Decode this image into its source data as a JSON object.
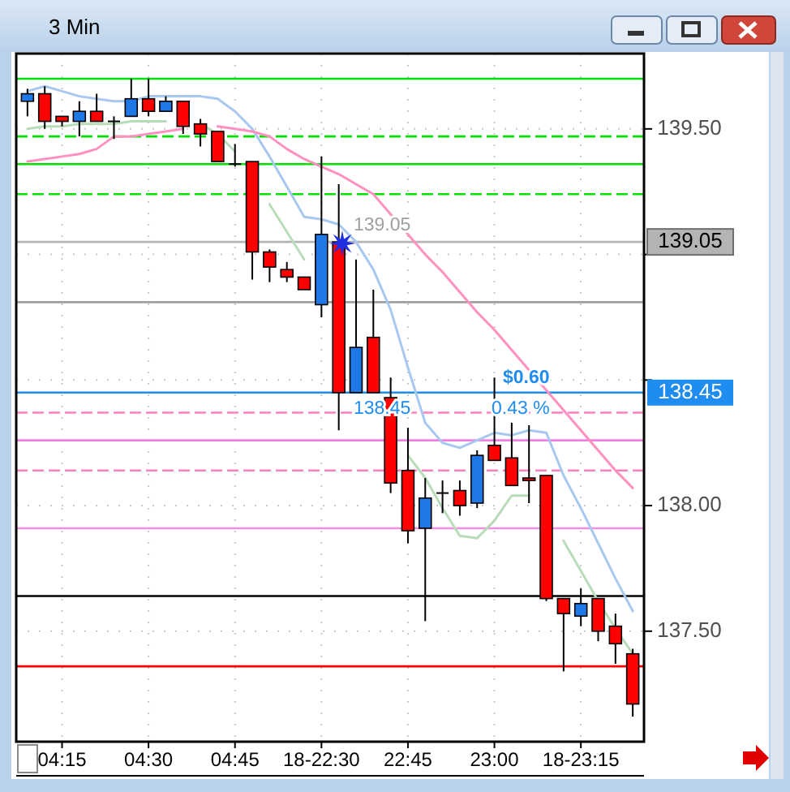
{
  "chart_data": {
    "type": "candlestick",
    "title": "3 Min",
    "categories": [
      null,
      null,
      "04:15",
      null,
      null,
      null,
      null,
      "04:30",
      null,
      null,
      null,
      null,
      "04:45",
      null,
      null,
      null,
      null,
      "18-22:30",
      null,
      null,
      null,
      null,
      "22:45",
      null,
      null,
      null,
      null,
      "23:00",
      null,
      null,
      null,
      null,
      "18-23:15",
      null,
      null,
      null
    ],
    "ohlc": [
      [
        139.61,
        139.66,
        139.55,
        139.64
      ],
      [
        139.64,
        139.67,
        139.5,
        139.53
      ],
      [
        139.55,
        139.55,
        139.51,
        139.53
      ],
      [
        139.53,
        139.61,
        139.47,
        139.57
      ],
      [
        139.57,
        139.64,
        139.53,
        139.53
      ],
      [
        139.53,
        139.55,
        139.46,
        139.53
      ],
      [
        139.55,
        139.7,
        139.55,
        139.62
      ],
      [
        139.62,
        139.7,
        139.55,
        139.57
      ],
      [
        139.57,
        139.63,
        139.57,
        139.61
      ],
      [
        139.61,
        139.61,
        139.48,
        139.51
      ],
      [
        139.52,
        139.54,
        139.43,
        139.48
      ],
      [
        139.49,
        139.49,
        139.37,
        139.37
      ],
      [
        139.36,
        139.44,
        139.35,
        139.36
      ],
      [
        139.37,
        139.37,
        138.9,
        139.01
      ],
      [
        139.01,
        139.02,
        138.89,
        138.95
      ],
      [
        138.94,
        138.97,
        138.89,
        138.91
      ],
      [
        138.91,
        138.91,
        138.86,
        138.86
      ],
      [
        138.8,
        139.39,
        138.75,
        139.08
      ],
      [
        139.05,
        139.28,
        138.3,
        138.45
      ],
      [
        138.45,
        138.98,
        138.45,
        138.63
      ],
      [
        138.67,
        138.86,
        138.45,
        138.45
      ],
      [
        138.43,
        138.51,
        138.05,
        138.09
      ],
      [
        138.14,
        138.31,
        137.85,
        137.9
      ],
      [
        137.91,
        138.11,
        137.54,
        138.03
      ],
      [
        138.05,
        138.1,
        137.97,
        138.05
      ],
      [
        138.06,
        138.1,
        137.96,
        138.0
      ],
      [
        138.01,
        138.22,
        137.99,
        138.2
      ],
      [
        138.24,
        138.51,
        138.18,
        138.18
      ],
      [
        138.19,
        138.33,
        138.08,
        138.08
      ],
      [
        138.11,
        138.32,
        138.01,
        138.1
      ],
      [
        138.12,
        138.12,
        137.62,
        137.63
      ],
      [
        137.63,
        137.63,
        137.34,
        137.57
      ],
      [
        137.56,
        137.67,
        137.52,
        137.61
      ],
      [
        137.63,
        137.63,
        137.46,
        137.5
      ],
      [
        137.52,
        137.57,
        137.37,
        137.45
      ],
      [
        137.41,
        137.43,
        137.16,
        137.21
      ]
    ],
    "series": [
      {
        "type": "line",
        "color": "#a8c8f0",
        "values": [
          139.65,
          139.67,
          139.65,
          139.63,
          139.62,
          139.61,
          139.61,
          139.63,
          139.63,
          139.63,
          139.63,
          139.62,
          139.57,
          139.5,
          139.39,
          139.27,
          139.15,
          139.14,
          139.12,
          139.05,
          138.94,
          138.78,
          138.55,
          138.33,
          138.25,
          138.23,
          138.26,
          138.29,
          138.28,
          138.3,
          138.29,
          138.12,
          137.99,
          137.85,
          137.71,
          137.58
        ]
      },
      {
        "type": "line",
        "color": "#ff90c0",
        "values": [
          139.37,
          139.38,
          139.39,
          139.4,
          139.42,
          139.47,
          139.47,
          139.48,
          139.49,
          139.5,
          null,
          139.51,
          139.5,
          139.49,
          139.47,
          139.42,
          139.38,
          139.35,
          139.32,
          139.28,
          139.24,
          139.16,
          139.08,
          139.0,
          138.93,
          138.85,
          138.77,
          138.7,
          138.62,
          138.54,
          138.46,
          138.38,
          138.3,
          138.22,
          138.14,
          138.07
        ]
      },
      {
        "type": "line",
        "color": "#b8dcb8",
        "values": [
          139.5,
          139.51,
          139.51,
          139.52,
          139.52,
          139.52,
          139.53,
          139.53,
          139.53,
          null,
          139.52,
          139.48,
          139.41,
          null,
          139.2,
          139.09,
          138.98,
          null,
          null,
          null,
          null,
          null,
          138.2,
          138.11,
          137.99,
          137.88,
          137.87,
          137.94,
          138.04,
          138.04,
          null,
          137.86,
          137.74,
          137.62,
          137.51,
          137.41
        ]
      }
    ],
    "ylim": [
      137.06,
      139.8
    ],
    "yticks": [
      {
        "value": 137.5,
        "label": "137.50"
      },
      {
        "value": 138,
        "label": "138.00"
      },
      {
        "value": 138.5,
        "label": null
      },
      {
        "value": 139,
        "label": null
      },
      {
        "value": 139.5,
        "label": "139.50"
      }
    ],
    "grid": true,
    "ref_lines": [
      {
        "axis": "y",
        "value": 139.7,
        "color": "#00e000",
        "line_style": "solid"
      },
      {
        "axis": "y",
        "value": 139.47,
        "color": "#00e000",
        "line_style": "dashed"
      },
      {
        "axis": "y",
        "value": 139.36,
        "color": "#00e000",
        "line_style": "solid"
      },
      {
        "axis": "y",
        "value": 139.24,
        "color": "#00e000",
        "line_style": "dashed"
      },
      {
        "axis": "y",
        "value": 138.81,
        "color": "#a0a0a0",
        "line_style": "solid"
      },
      {
        "axis": "y",
        "value": 139.05,
        "color": "#b4b4b4",
        "line_style": "solid",
        "label": "139.05"
      },
      {
        "axis": "y",
        "value": 138.45,
        "color": "#1e8cf0",
        "line_style": "solid",
        "label": "138.45"
      },
      {
        "axis": "y",
        "value": 138.37,
        "color": "#ff80c0",
        "line_style": "dashed"
      },
      {
        "axis": "y",
        "value": 138.26,
        "color": "#f080e0",
        "line_style": "solid"
      },
      {
        "axis": "y",
        "value": 138.14,
        "color": "#ff80c0",
        "line_style": "dashed"
      },
      {
        "axis": "y",
        "value": 137.91,
        "color": "#f090e0",
        "line_style": "solid"
      },
      {
        "axis": "y",
        "value": 137.64,
        "color": "#000000",
        "line_style": "solid"
      },
      {
        "axis": "y",
        "value": 137.36,
        "color": "#ff0000",
        "line_style": "solid"
      }
    ],
    "annotations": [
      {
        "text": "139.05",
        "y": 139.05
      },
      {
        "text": "138.45",
        "y": 138.45
      },
      {
        "text": "$0.60",
        "y": 138.45
      },
      {
        "text": "0.43 %",
        "y": 138.45
      }
    ]
  }
}
